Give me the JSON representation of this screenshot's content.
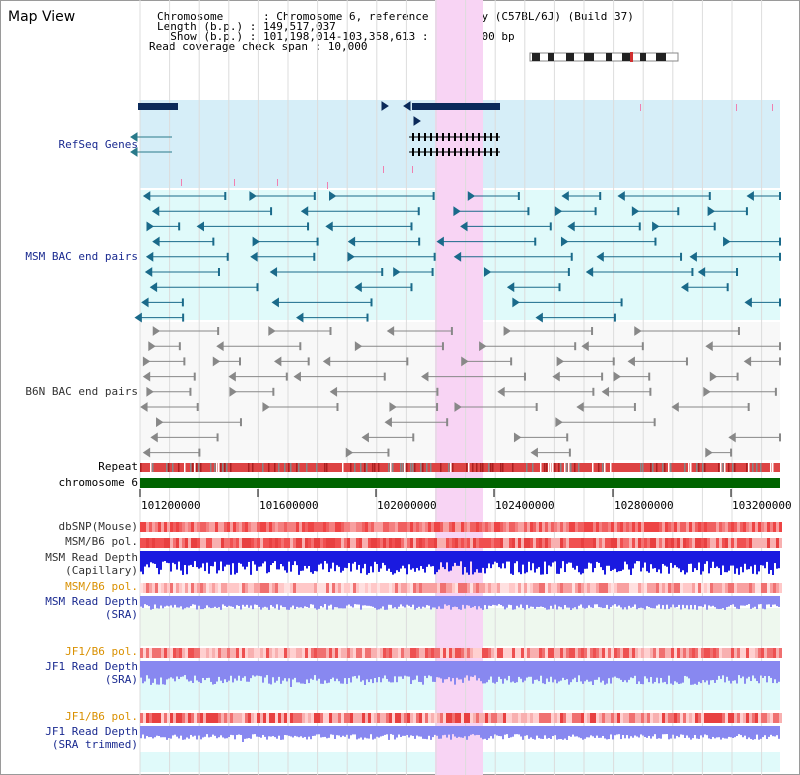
{
  "app": {
    "title": "Map View"
  },
  "header": {
    "lines": [
      "Chromosome      : Chromosome 6, reference assembly (C57BL/6J) (Build 37)",
      "Length (b.p.) : 149,517,037",
      "  Show (b.p.) : 101,198,014-103,358,613 : 2,160,600 bp",
      "Read coverage check span : 10,000"
    ]
  },
  "tracks": {
    "refseq": "RefSeq Genes",
    "msm_bac": "MSM BAC end pairs",
    "b6n_bac": "B6N BAC end pairs",
    "repeat": "Repeat",
    "chromosome": "chromosome 6",
    "dbsnp": "dbSNP(Mouse)",
    "msm_b6_pol_1": "MSM/B6 pol.",
    "msm_depth_cap_1": "MSM Read Depth",
    "msm_depth_cap_2": "(Capillary)",
    "msm_b6_pol_2": "MSM/B6 pol.",
    "msm_depth_sra_1": "MSM Read Depth",
    "msm_depth_sra_2": "(SRA)",
    "jf1_b6_pol_1": "JF1/B6 pol.",
    "jf1_depth_sra_1": "JF1 Read Depth",
    "jf1_depth_sra_2": "(SRA)",
    "jf1_b6_pol_2": "JF1/B6 pol.",
    "jf1_depth_trim_1": "JF1 Read Depth",
    "jf1_depth_trim_2": "(SRA trimmed)"
  },
  "axis": {
    "ticks": [
      "101200000",
      "101600000",
      "102000000",
      "102400000",
      "102800000",
      "103200000"
    ]
  },
  "colors": {
    "highlight": "#f8d4f4",
    "refseq_bg": "#d6eef8",
    "bac_bg": "#e0fafa",
    "chromosome_bar": "#006400",
    "depth_capillary": "#1a1ae0",
    "depth_sra": "#8888f0",
    "pol": "#f05050"
  }
}
